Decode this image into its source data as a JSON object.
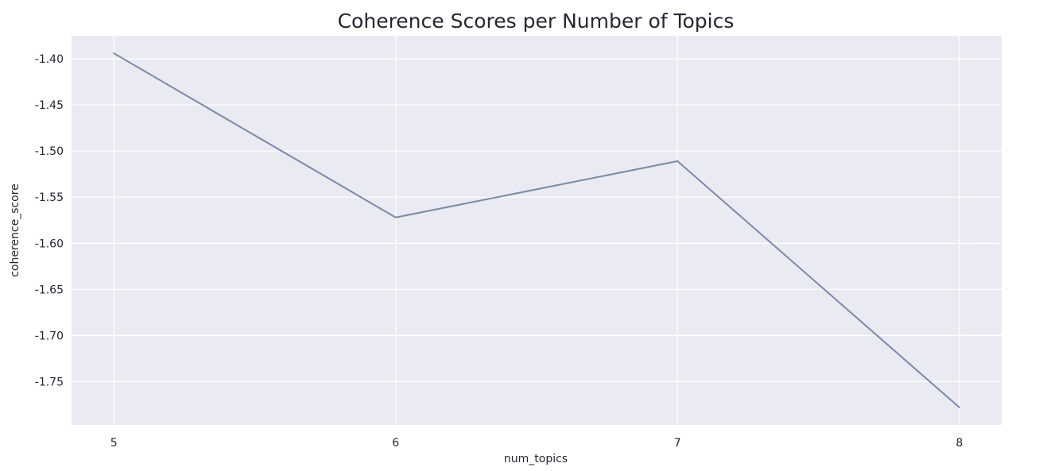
{
  "chart_data": {
    "type": "line",
    "title": "Coherence Scores per Number of Topics",
    "xlabel": "num_topics",
    "ylabel": "coherence_score",
    "x": [
      5,
      6,
      7,
      8
    ],
    "series": [
      {
        "values": [
          -1.394,
          -1.572,
          -1.511,
          -1.778
        ],
        "color": "#7a8aa8"
      }
    ],
    "xticks": [
      "5",
      "6",
      "7",
      "8"
    ],
    "yticks": [
      "-1.40",
      "-1.45",
      "-1.50",
      "-1.55",
      "-1.60",
      "-1.65",
      "-1.70",
      "-1.75"
    ],
    "ytick_values": [
      -1.4,
      -1.45,
      -1.5,
      -1.55,
      -1.6,
      -1.65,
      -1.7,
      -1.75
    ],
    "xlim": [
      4.85,
      8.15
    ],
    "ylim": [
      -1.797,
      -1.375
    ],
    "grid": true,
    "style": {
      "plot_background": "#eaeaf2",
      "grid_color": "#ffffff",
      "text_color": "#262633"
    }
  }
}
